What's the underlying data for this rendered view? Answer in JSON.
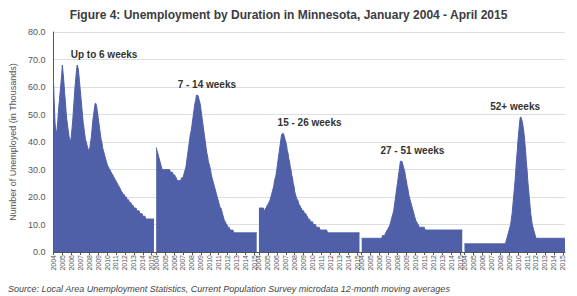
{
  "chart_data": {
    "type": "area",
    "title": "Figure 4: Unemployment by Duration in Minnesota, January 2004 - April 2015",
    "y_label": "Number of Unemployed (in Thousands)",
    "source": "Source: Local Area Unemployment Statistics, Current Population Survey microdata 12-month moving averages",
    "annotations": [
      "Up to 6 weeks",
      "7 - 14 weeks",
      "15 - 26 weeks",
      "27 - 51 weeks",
      "52+ weeks"
    ],
    "color": "#4f5fa8",
    "grid": true,
    "ylim": [
      0,
      80
    ],
    "yticks": [
      {
        "value": 0,
        "label": "0.0"
      },
      {
        "value": 10,
        "label": "10.0"
      },
      {
        "value": 20,
        "label": "20.0"
      },
      {
        "value": 30,
        "label": "30.0"
      },
      {
        "value": 40,
        "label": "40.0"
      },
      {
        "value": 50,
        "label": "50.0"
      },
      {
        "value": 60,
        "label": "60.0"
      },
      {
        "value": 70,
        "label": "70.0"
      },
      {
        "value": 80,
        "label": "80.0"
      }
    ],
    "categories": [
      "2004",
      null,
      null,
      null,
      null,
      null,
      null,
      null,
      null,
      null,
      null,
      null,
      "2005",
      null,
      null,
      null,
      null,
      null,
      null,
      null,
      null,
      null,
      null,
      null,
      "2006",
      null,
      null,
      null,
      null,
      null,
      null,
      null,
      null,
      null,
      null,
      null,
      "2007",
      null,
      null,
      null,
      null,
      null,
      null,
      null,
      null,
      null,
      null,
      null,
      "2008",
      null,
      null,
      null,
      null,
      null,
      null,
      null,
      null,
      null,
      null,
      null,
      "2009",
      null,
      null,
      null,
      null,
      null,
      null,
      null,
      null,
      null,
      null,
      null,
      "2010",
      null,
      null,
      null,
      null,
      null,
      null,
      null,
      null,
      null,
      null,
      null,
      "2011",
      null,
      null,
      null,
      null,
      null,
      null,
      null,
      null,
      null,
      null,
      null,
      "2012",
      null,
      null,
      null,
      null,
      null,
      null,
      null,
      null,
      null,
      null,
      null,
      "2013",
      null,
      null,
      null,
      null,
      null,
      null,
      null,
      null,
      null,
      null,
      null,
      "2014",
      null,
      null,
      null,
      null,
      null,
      null,
      null,
      null,
      null,
      null,
      null,
      "2015",
      null,
      null,
      null
    ],
    "series": [
      {
        "values": [
          63,
          55,
          48,
          44,
          43,
          45,
          48,
          52,
          55,
          58,
          61,
          64,
          68,
          65,
          62,
          58,
          55,
          51,
          48,
          46,
          44,
          42,
          41,
          40,
          42,
          45,
          48,
          52,
          56,
          60,
          63,
          66,
          68,
          67,
          65,
          62,
          59,
          56,
          53,
          50,
          47,
          45,
          43,
          41,
          40,
          39,
          38,
          37,
          37,
          38,
          40,
          42,
          45,
          48,
          50,
          52,
          54,
          54,
          53,
          51,
          49,
          47,
          45,
          43,
          41,
          40,
          38,
          37,
          36,
          35,
          34,
          33,
          32,
          31,
          31,
          30,
          30,
          29,
          29,
          28,
          28,
          27,
          27,
          26,
          26,
          25,
          25,
          24,
          24,
          23,
          23,
          22,
          22,
          21,
          21,
          21,
          20,
          20,
          20,
          19,
          19,
          19,
          18,
          18,
          18,
          17,
          17,
          17,
          16,
          16,
          16,
          16,
          15,
          15,
          15,
          15,
          14,
          14,
          14,
          14,
          13,
          13,
          13,
          13,
          12,
          12,
          12,
          12,
          12,
          12,
          12,
          12,
          12,
          12,
          12,
          12
        ]
      },
      {
        "values": [
          38,
          37,
          36,
          35,
          34,
          33,
          32,
          31,
          30,
          30,
          30,
          30,
          30,
          30,
          30,
          30,
          30,
          30,
          30,
          29,
          29,
          29,
          29,
          28,
          28,
          28,
          27,
          27,
          26,
          26,
          26,
          26,
          26,
          26,
          27,
          27,
          27,
          28,
          29,
          30,
          31,
          33,
          35,
          37,
          39,
          41,
          43,
          44,
          46,
          48,
          50,
          52,
          54,
          55,
          57,
          57,
          57,
          56,
          55,
          54,
          52,
          50,
          48,
          46,
          44,
          42,
          40,
          38,
          36,
          35,
          33,
          32,
          31,
          30,
          28,
          27,
          26,
          25,
          24,
          23,
          22,
          21,
          20,
          19,
          18,
          17,
          16,
          16,
          15,
          14,
          13,
          12,
          11,
          11,
          10,
          10,
          9,
          9,
          9,
          8,
          8,
          8,
          8,
          8,
          7,
          7,
          7,
          7,
          7,
          7,
          7,
          7,
          7,
          7,
          7,
          7,
          7,
          7,
          7,
          7,
          7,
          7,
          7,
          7,
          7,
          7,
          7,
          7,
          7,
          7,
          7,
          7,
          7,
          7,
          7,
          7
        ]
      },
      {
        "values": [
          16,
          16,
          16,
          16,
          16,
          16,
          16,
          15,
          15,
          16,
          16,
          17,
          17,
          18,
          18,
          19,
          20,
          21,
          22,
          23,
          24,
          26,
          27,
          28,
          30,
          32,
          34,
          36,
          38,
          40,
          42,
          43,
          43,
          43,
          42,
          41,
          40,
          39,
          37,
          36,
          34,
          33,
          31,
          30,
          28,
          27,
          25,
          24,
          22,
          21,
          20,
          19,
          19,
          18,
          17,
          17,
          16,
          16,
          15,
          15,
          15,
          14,
          14,
          14,
          13,
          13,
          12,
          12,
          12,
          11,
          11,
          11,
          11,
          10,
          10,
          10,
          10,
          9,
          9,
          9,
          9,
          9,
          8,
          8,
          8,
          8,
          8,
          8,
          8,
          8,
          8,
          8,
          7,
          7,
          7,
          7,
          7,
          7,
          7,
          7,
          7,
          7,
          7,
          7,
          7,
          7,
          7,
          7,
          7,
          7,
          7,
          7,
          7,
          7,
          7,
          7,
          7,
          7,
          7,
          7,
          7,
          7,
          7,
          7,
          7,
          7,
          7,
          7,
          7,
          7,
          7,
          7,
          7,
          7,
          7,
          7
        ]
      },
      {
        "values": [
          5,
          5,
          5,
          5,
          5,
          5,
          5,
          5,
          5,
          5,
          5,
          5,
          5,
          5,
          5,
          5,
          5,
          5,
          5,
          5,
          5,
          5,
          5,
          5,
          5,
          5,
          5,
          5,
          6,
          6,
          6,
          6,
          7,
          7,
          8,
          8,
          9,
          9,
          10,
          11,
          12,
          13,
          14,
          15,
          17,
          19,
          21,
          23,
          25,
          27,
          29,
          31,
          33,
          33,
          33,
          32,
          31,
          30,
          29,
          27,
          26,
          24,
          23,
          21,
          20,
          19,
          18,
          17,
          16,
          15,
          14,
          13,
          12,
          11,
          11,
          10,
          10,
          9,
          9,
          9,
          9,
          9,
          9,
          9,
          9,
          8,
          8,
          8,
          8,
          8,
          8,
          8,
          8,
          8,
          8,
          8,
          8,
          8,
          8,
          8,
          8,
          8,
          8,
          8,
          8,
          8,
          8,
          8,
          8,
          8,
          8,
          8,
          8,
          8,
          8,
          8,
          8,
          8,
          8,
          8,
          8,
          8,
          8,
          8,
          8,
          8,
          8,
          8,
          8,
          8,
          8,
          8,
          8,
          8,
          8,
          8
        ]
      },
      {
        "values": [
          3,
          3,
          3,
          3,
          3,
          3,
          3,
          3,
          3,
          3,
          3,
          3,
          3,
          3,
          3,
          3,
          3,
          3,
          3,
          3,
          3,
          3,
          3,
          3,
          3,
          3,
          3,
          3,
          3,
          3,
          3,
          3,
          3,
          3,
          3,
          3,
          3,
          3,
          3,
          3,
          3,
          3,
          3,
          3,
          3,
          3,
          3,
          3,
          3,
          3,
          3,
          3,
          3,
          3,
          3,
          3,
          4,
          5,
          6,
          7,
          8,
          9,
          10,
          12,
          14,
          17,
          20,
          23,
          26,
          30,
          34,
          37,
          41,
          44,
          47,
          49,
          49,
          48,
          47,
          45,
          43,
          40,
          37,
          33,
          30,
          26,
          23,
          20,
          17,
          14,
          12,
          10,
          9,
          8,
          7,
          6,
          5,
          5,
          5,
          5,
          5,
          5,
          5,
          5,
          5,
          5,
          5,
          5,
          5,
          5,
          5,
          5,
          5,
          5,
          5,
          5,
          5,
          5,
          5,
          5,
          5,
          5,
          5,
          5,
          5,
          5,
          5,
          5,
          5,
          5,
          5,
          5,
          5,
          5,
          5,
          5
        ]
      }
    ]
  }
}
